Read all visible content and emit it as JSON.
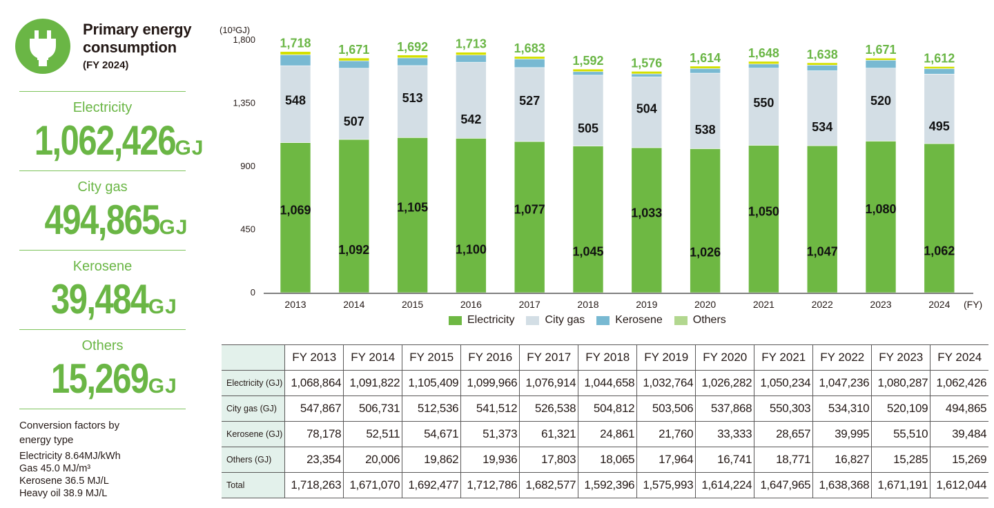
{
  "summary": {
    "icon": "plug-icon",
    "title_line1": "Primary energy",
    "title_line2": "consumption",
    "title_sub": "(FY 2024)",
    "items": [
      {
        "label": "Electricity",
        "value": "1,062,426",
        "unit": "GJ"
      },
      {
        "label": "City gas",
        "value": "494,865",
        "unit": "GJ"
      },
      {
        "label": "Kerosene",
        "value": "39,484",
        "unit": "GJ"
      },
      {
        "label": "Others",
        "value": "15,269",
        "unit": "GJ"
      }
    ],
    "factors_heading_line1": "Conversion factors by",
    "factors_heading_line2": "energy type",
    "factors": [
      "Electricity 8.64MJ/kWh",
      "Gas 45.0 MJ/m³",
      "Kerosene 36.5 MJ/L",
      "Heavy oil 38.9 MJ/L"
    ]
  },
  "colors": {
    "accent": "#6ab645",
    "electricity": "#6eb843",
    "city_gas": "#d3dee5",
    "kerosene": "#78b9d2",
    "others_bar": "#d4e000",
    "others_legend": "#b2d78f",
    "table_header_bg": "#e3f1eb"
  },
  "chart_data": {
    "type": "bar",
    "stacked": true,
    "unit_label": "(10³GJ)",
    "xlabel_suffix": "(FY)",
    "categories": [
      "2013",
      "2014",
      "2015",
      "2016",
      "2017",
      "2018",
      "2019",
      "2020",
      "2021",
      "2022",
      "2023",
      "2024"
    ],
    "series": [
      {
        "name": "Electricity",
        "key": "electricity",
        "values": [
          1069,
          1092,
          1105,
          1100,
          1077,
          1045,
          1033,
          1026,
          1050,
          1047,
          1080,
          1062
        ]
      },
      {
        "name": "City gas",
        "key": "city_gas",
        "values": [
          548,
          507,
          513,
          542,
          527,
          505,
          504,
          538,
          550,
          534,
          520,
          495
        ]
      },
      {
        "name": "Kerosene",
        "key": "kerosene",
        "values": [
          78,
          53,
          55,
          51,
          61,
          25,
          22,
          33,
          29,
          40,
          56,
          39
        ]
      },
      {
        "name": "Others",
        "key": "others",
        "values": [
          23,
          20,
          20,
          20,
          18,
          18,
          18,
          17,
          19,
          17,
          15,
          15
        ]
      }
    ],
    "totals": [
      "1,718",
      "1,671",
      "1,692",
      "1,713",
      "1,683",
      "1,592",
      "1,576",
      "1,614",
      "1,648",
      "1,638",
      "1,671",
      "1,612"
    ],
    "electricity_labels": [
      "1,069",
      "1,092",
      "1,105",
      "1,100",
      "1,077",
      "1,045",
      "1,033",
      "1,026",
      "1,050",
      "1,047",
      "1,080",
      "1,062"
    ],
    "city_gas_labels": [
      "548",
      "507",
      "513",
      "542",
      "527",
      "505",
      "504",
      "538",
      "550",
      "534",
      "520",
      "495"
    ],
    "yticks": [
      0,
      450,
      900,
      1350,
      1800
    ],
    "ytick_labels": [
      "0",
      "450",
      "900",
      "1,350",
      "1,800"
    ],
    "ylim": [
      0,
      1800
    ],
    "grid": false,
    "legend": [
      "Electricity",
      "City gas",
      "Kerosene",
      "Others"
    ],
    "legend_position": "bottom"
  },
  "table": {
    "headers": [
      "FY 2013",
      "FY 2014",
      "FY 2015",
      "FY 2016",
      "FY 2017",
      "FY 2018",
      "FY 2019",
      "FY 2020",
      "FY 2021",
      "FY 2022",
      "FY 2023",
      "FY 2024"
    ],
    "rows": [
      {
        "label": "Electricity (GJ)",
        "values": [
          "1,068,864",
          "1,091,822",
          "1,105,409",
          "1,099,966",
          "1,076,914",
          "1,044,658",
          "1,032,764",
          "1,026,282",
          "1,050,234",
          "1,047,236",
          "1,080,287",
          "1,062,426"
        ]
      },
      {
        "label": "City gas (GJ)",
        "values": [
          "547,867",
          "506,731",
          "512,536",
          "541,512",
          "526,538",
          "504,812",
          "503,506",
          "537,868",
          "550,303",
          "534,310",
          "520,109",
          "494,865"
        ]
      },
      {
        "label": "Kerosene (GJ)",
        "values": [
          "78,178",
          "52,511",
          "54,671",
          "51,373",
          "61,321",
          "24,861",
          "21,760",
          "33,333",
          "28,657",
          "39,995",
          "55,510",
          "39,484"
        ]
      },
      {
        "label": "Others (GJ)",
        "values": [
          "23,354",
          "20,006",
          "19,862",
          "19,936",
          "17,803",
          "18,065",
          "17,964",
          "16,741",
          "18,771",
          "16,827",
          "15,285",
          "15,269"
        ]
      },
      {
        "label": "Total",
        "values": [
          "1,718,263",
          "1,671,070",
          "1,692,477",
          "1,712,786",
          "1,682,577",
          "1,592,396",
          "1,575,993",
          "1,614,224",
          "1,647,965",
          "1,638,368",
          "1,671,191",
          "1,612,044"
        ]
      }
    ]
  }
}
